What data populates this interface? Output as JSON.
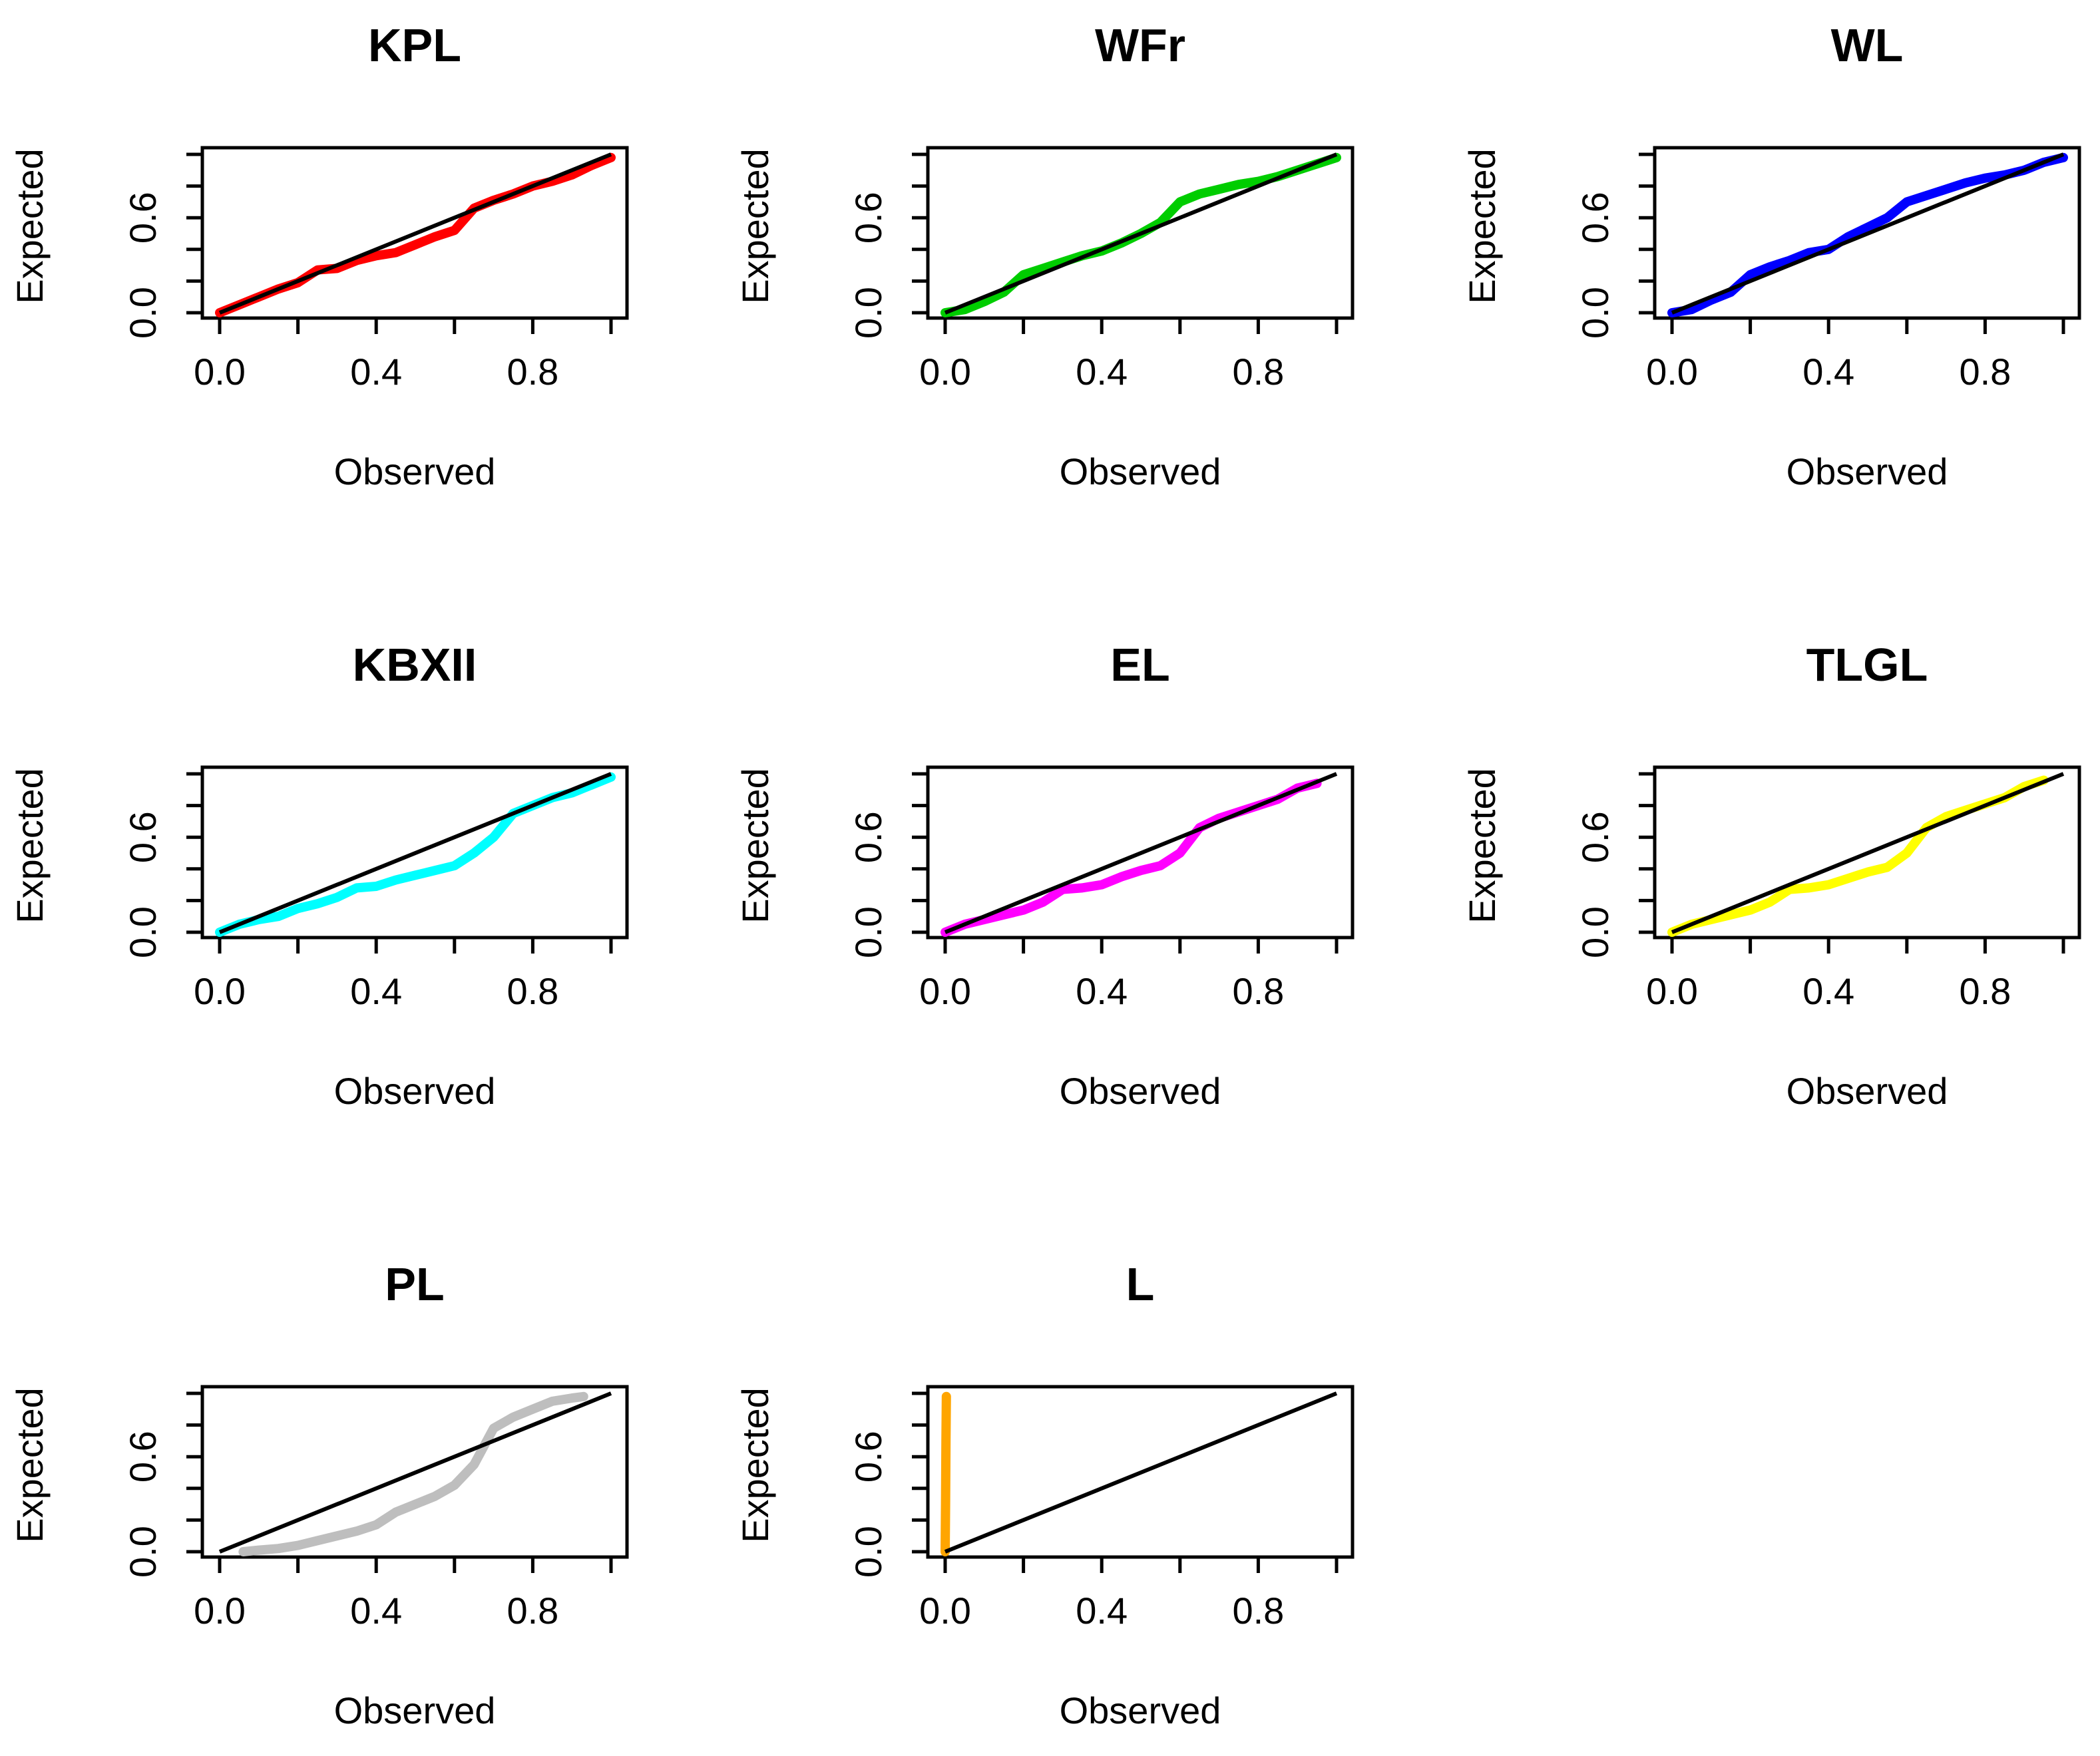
{
  "figure": {
    "layout": "3x3 grid of Q-Q style plots"
  },
  "chart_data": [
    {
      "type": "line",
      "title": "KPL",
      "xlabel": "Observed",
      "ylabel": "Expected",
      "xlim": [
        0,
        1
      ],
      "ylim": [
        0,
        1
      ],
      "x_ticks": [
        "0.0",
        "0.4",
        "0.8"
      ],
      "y_ticks": [
        "0.0",
        "0.6"
      ],
      "reference_line": {
        "name": "y = x",
        "color": "#000000",
        "x": [
          0,
          1
        ],
        "y": [
          0,
          1
        ]
      },
      "series": [
        {
          "name": "KPL",
          "color": "#ff0000",
          "x": [
            0.0,
            0.05,
            0.1,
            0.15,
            0.2,
            0.25,
            0.3,
            0.35,
            0.4,
            0.45,
            0.5,
            0.55,
            0.6,
            0.65,
            0.7,
            0.75,
            0.8,
            0.85,
            0.9,
            0.95,
            1.0
          ],
          "y": [
            0.0,
            0.05,
            0.1,
            0.15,
            0.19,
            0.27,
            0.28,
            0.33,
            0.36,
            0.38,
            0.43,
            0.48,
            0.52,
            0.66,
            0.71,
            0.75,
            0.8,
            0.83,
            0.87,
            0.93,
            0.98
          ]
        }
      ]
    },
    {
      "type": "line",
      "title": "WFr",
      "xlabel": "Observed",
      "ylabel": "Expected",
      "xlim": [
        0,
        1
      ],
      "ylim": [
        0,
        1
      ],
      "x_ticks": [
        "0.0",
        "0.4",
        "0.8"
      ],
      "y_ticks": [
        "0.0",
        "0.6"
      ],
      "reference_line": {
        "name": "y = x",
        "color": "#000000",
        "x": [
          0,
          1
        ],
        "y": [
          0,
          1
        ]
      },
      "series": [
        {
          "name": "WFr",
          "color": "#00cd00",
          "x": [
            0.0,
            0.05,
            0.1,
            0.15,
            0.2,
            0.25,
            0.3,
            0.35,
            0.4,
            0.45,
            0.5,
            0.55,
            0.6,
            0.65,
            0.7,
            0.75,
            0.8,
            0.85,
            0.9,
            0.95,
            1.0
          ],
          "y": [
            0.0,
            0.02,
            0.07,
            0.13,
            0.24,
            0.28,
            0.32,
            0.36,
            0.39,
            0.44,
            0.5,
            0.57,
            0.7,
            0.75,
            0.78,
            0.81,
            0.83,
            0.86,
            0.9,
            0.94,
            0.98
          ]
        }
      ]
    },
    {
      "type": "line",
      "title": "WL",
      "xlabel": "Observed",
      "ylabel": "Expected",
      "xlim": [
        0,
        1
      ],
      "ylim": [
        0,
        1
      ],
      "x_ticks": [
        "0.0",
        "0.4",
        "0.8"
      ],
      "y_ticks": [
        "0.0",
        "0.6"
      ],
      "reference_line": {
        "name": "y = x",
        "color": "#000000",
        "x": [
          0,
          1
        ],
        "y": [
          0,
          1
        ]
      },
      "series": [
        {
          "name": "WL",
          "color": "#0000ff",
          "x": [
            0.0,
            0.05,
            0.1,
            0.15,
            0.2,
            0.25,
            0.3,
            0.35,
            0.4,
            0.45,
            0.5,
            0.55,
            0.6,
            0.65,
            0.7,
            0.75,
            0.8,
            0.85,
            0.9,
            0.95,
            1.0
          ],
          "y": [
            0.0,
            0.02,
            0.08,
            0.13,
            0.24,
            0.29,
            0.33,
            0.38,
            0.4,
            0.48,
            0.54,
            0.6,
            0.7,
            0.74,
            0.78,
            0.82,
            0.85,
            0.87,
            0.9,
            0.95,
            0.98
          ]
        }
      ]
    },
    {
      "type": "line",
      "title": "KBXII",
      "xlabel": "Observed",
      "ylabel": "Expected",
      "xlim": [
        0,
        1
      ],
      "ylim": [
        0,
        1
      ],
      "x_ticks": [
        "0.0",
        "0.4",
        "0.8"
      ],
      "y_ticks": [
        "0.0",
        "0.6"
      ],
      "reference_line": {
        "name": "y = x",
        "color": "#000000",
        "x": [
          0,
          1
        ],
        "y": [
          0,
          1
        ]
      },
      "series": [
        {
          "name": "KBXII",
          "color": "#00ffff",
          "x": [
            0.0,
            0.05,
            0.1,
            0.15,
            0.2,
            0.25,
            0.3,
            0.35,
            0.4,
            0.45,
            0.5,
            0.55,
            0.6,
            0.65,
            0.7,
            0.75,
            0.8,
            0.85,
            0.9,
            0.95,
            1.0
          ],
          "y": [
            0.0,
            0.05,
            0.08,
            0.1,
            0.15,
            0.18,
            0.22,
            0.28,
            0.29,
            0.33,
            0.36,
            0.39,
            0.42,
            0.5,
            0.6,
            0.75,
            0.8,
            0.85,
            0.88,
            0.93,
            0.98
          ]
        }
      ]
    },
    {
      "type": "line",
      "title": "EL",
      "xlabel": "Observed",
      "ylabel": "Expected",
      "xlim": [
        0,
        1
      ],
      "ylim": [
        0,
        1
      ],
      "x_ticks": [
        "0.0",
        "0.4",
        "0.8"
      ],
      "y_ticks": [
        "0.0",
        "0.6"
      ],
      "reference_line": {
        "name": "y = x",
        "color": "#000000",
        "x": [
          0,
          1
        ],
        "y": [
          0,
          1
        ]
      },
      "series": [
        {
          "name": "EL",
          "color": "#ff00ff",
          "x": [
            0.0,
            0.05,
            0.1,
            0.15,
            0.2,
            0.25,
            0.3,
            0.35,
            0.4,
            0.45,
            0.5,
            0.55,
            0.6,
            0.65,
            0.7,
            0.75,
            0.8,
            0.85,
            0.9,
            0.95
          ],
          "y": [
            0.0,
            0.05,
            0.08,
            0.11,
            0.14,
            0.19,
            0.27,
            0.28,
            0.3,
            0.35,
            0.39,
            0.42,
            0.5,
            0.66,
            0.72,
            0.76,
            0.8,
            0.84,
            0.91,
            0.94
          ]
        }
      ]
    },
    {
      "type": "line",
      "title": "TLGL",
      "xlabel": "Observed",
      "ylabel": "Expected",
      "xlim": [
        0,
        1
      ],
      "ylim": [
        0,
        1
      ],
      "x_ticks": [
        "0.0",
        "0.4",
        "0.8"
      ],
      "y_ticks": [
        "0.0",
        "0.6"
      ],
      "reference_line": {
        "name": "y = x",
        "color": "#000000",
        "x": [
          0,
          1
        ],
        "y": [
          0,
          1
        ]
      },
      "series": [
        {
          "name": "TLGL",
          "color": "#ffff00",
          "x": [
            0.0,
            0.05,
            0.1,
            0.15,
            0.2,
            0.25,
            0.3,
            0.35,
            0.4,
            0.45,
            0.5,
            0.55,
            0.6,
            0.65,
            0.7,
            0.75,
            0.8,
            0.85,
            0.9,
            0.95
          ],
          "y": [
            0.0,
            0.05,
            0.08,
            0.11,
            0.14,
            0.19,
            0.27,
            0.28,
            0.3,
            0.34,
            0.38,
            0.41,
            0.5,
            0.66,
            0.73,
            0.77,
            0.81,
            0.85,
            0.92,
            0.96
          ]
        }
      ]
    },
    {
      "type": "line",
      "title": "PL",
      "xlabel": "Observed",
      "ylabel": "Expected",
      "xlim": [
        0,
        1
      ],
      "ylim": [
        0,
        1
      ],
      "x_ticks": [
        "0.0",
        "0.4",
        "0.8"
      ],
      "y_ticks": [
        "0.0",
        "0.6"
      ],
      "reference_line": {
        "name": "y = x",
        "color": "#000000",
        "x": [
          0,
          1
        ],
        "y": [
          0,
          1
        ]
      },
      "series": [
        {
          "name": "PL",
          "color": "#bebebe",
          "x": [
            0.06,
            0.1,
            0.15,
            0.2,
            0.25,
            0.3,
            0.35,
            0.4,
            0.45,
            0.5,
            0.55,
            0.6,
            0.65,
            0.7,
            0.75,
            0.8,
            0.85,
            0.9,
            0.93
          ],
          "y": [
            0.0,
            0.01,
            0.02,
            0.04,
            0.07,
            0.1,
            0.13,
            0.17,
            0.25,
            0.3,
            0.35,
            0.42,
            0.55,
            0.78,
            0.85,
            0.9,
            0.95,
            0.97,
            0.98
          ]
        }
      ]
    },
    {
      "type": "line",
      "title": "L",
      "xlabel": "Observed",
      "ylabel": "Expected",
      "xlim": [
        0,
        1
      ],
      "ylim": [
        0,
        1
      ],
      "x_ticks": [
        "0.0",
        "0.4",
        "0.8"
      ],
      "y_ticks": [
        "0.0",
        "0.6"
      ],
      "reference_line": {
        "name": "y = x",
        "color": "#000000",
        "x": [
          0,
          1
        ],
        "y": [
          0,
          1
        ]
      },
      "series": [
        {
          "name": "L",
          "color": "#ffa500",
          "x": [
            0.0,
            0.001,
            0.002,
            0.003
          ],
          "y": [
            0.0,
            0.3,
            0.7,
            0.98
          ]
        }
      ]
    }
  ]
}
